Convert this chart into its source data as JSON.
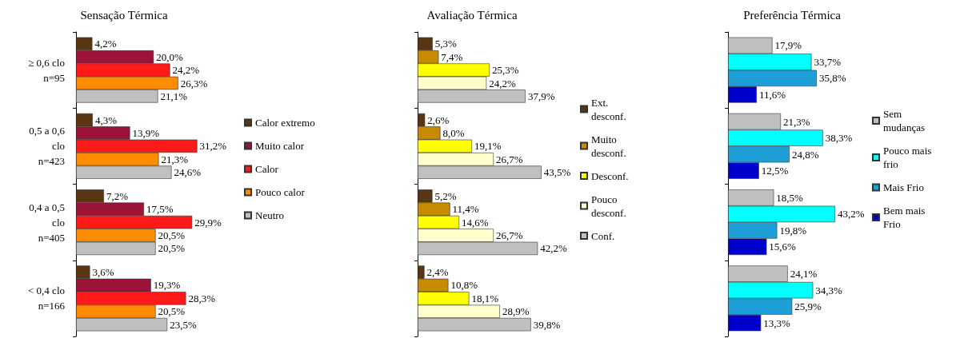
{
  "chart_data": [
    {
      "type": "bar",
      "orientation": "horizontal",
      "title": "Sensação Térmica",
      "categories": [
        "≥ 0,6 clo\nn=95",
        "0,5 a 0,6\nclo\nn=423",
        "0,4 a 0,5\nclo\nn=405",
        "< 0,4 clo\nn=166"
      ],
      "legend": "right",
      "series": [
        {
          "name": "Calor extremo",
          "color": "#5a3512",
          "values": [
            4.2,
            4.3,
            7.2,
            3.6
          ],
          "value_labels": [
            "4,2%",
            "4,3%",
            "7,2%",
            "3,6%"
          ]
        },
        {
          "name": "Muito calor",
          "color": "#9b1438",
          "values": [
            20.0,
            13.9,
            17.5,
            19.3
          ],
          "value_labels": [
            "20,0%",
            "13,9%",
            "17,5%",
            "19,3%"
          ]
        },
        {
          "name": "Calor",
          "color": "#ff1a1a",
          "values": [
            24.2,
            31.2,
            29.9,
            28.3
          ],
          "value_labels": [
            "24,2%",
            "31,2%",
            "29,9%",
            "28,3%"
          ]
        },
        {
          "name": "Pouco calor",
          "color": "#ff8c00",
          "values": [
            26.3,
            21.3,
            20.5,
            20.5
          ],
          "value_labels": [
            "26,3%",
            "21,3%",
            "20,5%",
            "20,5%"
          ]
        },
        {
          "name": "Neutro",
          "color": "#c0c0c0",
          "values": [
            21.1,
            24.6,
            20.5,
            23.5
          ],
          "value_labels": [
            "21,1%",
            "24,6%",
            "20,5%",
            "23,5%"
          ]
        }
      ]
    },
    {
      "type": "bar",
      "orientation": "horizontal",
      "title": "Avaliação Térmica",
      "categories": [
        null,
        null,
        null,
        null
      ],
      "legend": "right",
      "series": [
        {
          "name": "Ext. desconf.",
          "color": "#5a3512",
          "values": [
            5.3,
            2.6,
            5.2,
            2.4
          ],
          "value_labels": [
            "5,3%",
            "2,6%",
            "5,2%",
            "2,4%"
          ]
        },
        {
          "name": "Muito desconf.",
          "color": "#c88a00",
          "values": [
            7.4,
            8.0,
            11.4,
            10.8
          ],
          "value_labels": [
            "7,4%",
            "8,0%",
            "11,4%",
            "10,8%"
          ]
        },
        {
          "name": "Desconf.",
          "color": "#ffff00",
          "values": [
            25.3,
            19.1,
            14.6,
            18.1
          ],
          "value_labels": [
            "25,3%",
            "19,1%",
            "14,6%",
            "18,1%"
          ]
        },
        {
          "name": "Pouco desconf.",
          "color": "#ffffcc",
          "values": [
            24.2,
            26.7,
            26.7,
            28.9
          ],
          "value_labels": [
            "24,2%",
            "26,7%",
            "26,7%",
            "28,9%"
          ]
        },
        {
          "name": "Conf.",
          "color": "#c0c0c0",
          "values": [
            37.9,
            43.5,
            42.2,
            39.8
          ],
          "value_labels": [
            "37,9%",
            "43,5%",
            "42,2%",
            "39,8%"
          ]
        }
      ]
    },
    {
      "type": "bar",
      "orientation": "horizontal",
      "title": "Preferência Térmica",
      "categories": [
        null,
        null,
        null,
        null
      ],
      "legend": "right",
      "series": [
        {
          "name": "Sem mudanças",
          "color": "#c0c0c0",
          "values": [
            17.9,
            21.3,
            18.5,
            24.1
          ],
          "value_labels": [
            "17,9%",
            "21,3%",
            "18,5%",
            "24,1%"
          ]
        },
        {
          "name": "Pouco mais frio",
          "color": "#00ffff",
          "values": [
            33.7,
            38.3,
            43.2,
            34.3
          ],
          "value_labels": [
            "33,7%",
            "38,3%",
            "43,2%",
            "34,3%"
          ]
        },
        {
          "name": "Mais Frio",
          "color": "#1e9fd8",
          "values": [
            35.8,
            24.8,
            19.8,
            25.9
          ],
          "value_labels": [
            "35,8%",
            "24,8%",
            "19,8%",
            "25,9%"
          ]
        },
        {
          "name": "Bem mais Frio",
          "color": "#0000cc",
          "values": [
            11.6,
            12.5,
            15.6,
            13.3
          ],
          "value_labels": [
            "11,6%",
            "12,5%",
            "15,6%",
            "13,3%"
          ]
        }
      ]
    }
  ]
}
